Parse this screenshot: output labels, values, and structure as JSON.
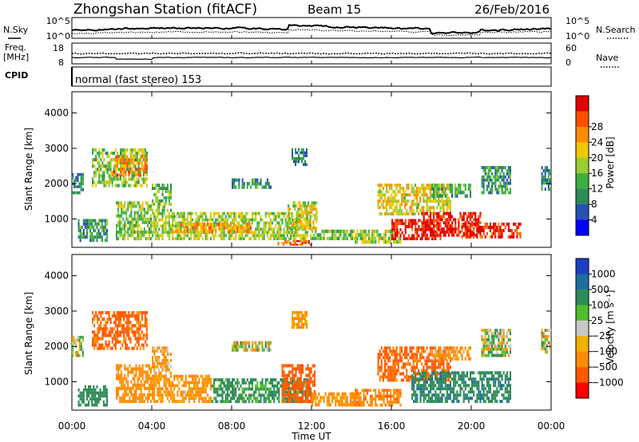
{
  "header": {
    "station": "Zhongshan Station (fitACF)",
    "beam": "Beam 15",
    "date": "26/Feb/2016"
  },
  "noise_panel": {
    "left_label": "N.Sky",
    "right_label": "N.Search",
    "left_ticks": [
      "10^5",
      "10^0"
    ],
    "right_ticks": [
      "10^5",
      "10^0"
    ]
  },
  "freq_panel": {
    "left_label_1": "Freq.",
    "left_label_2": "[MHz]",
    "right_label": "Nave",
    "left_ticks": [
      "18",
      "8"
    ],
    "right_ticks": [
      "60",
      "0"
    ]
  },
  "cpid": {
    "label": "CPID",
    "mode": "normal (fast stereo) 153"
  },
  "colors": {
    "power_scale": [
      "#0000ff",
      "#2850b4",
      "#2e8b57",
      "#3cb043",
      "#9acd32",
      "#f0c800",
      "#ff8c00",
      "#ff5000",
      "#e00000"
    ],
    "velocity_scale": [
      "#1c3fbf",
      "#1e6e9e",
      "#2e8b57",
      "#4fbe2f",
      "#c8c8c8",
      "#f0b000",
      "#ff8c00",
      "#ff5a00",
      "#ff0000"
    ]
  },
  "chart_data": [
    {
      "type": "heatmap",
      "name": "power",
      "ylabel": "Slant Range [km]",
      "xlabel": "",
      "y_ticks": [
        "1000",
        "2000",
        "3000",
        "4000"
      ],
      "y_tick_values": [
        1000,
        2000,
        3000,
        4000
      ],
      "ylim": [
        200,
        4600
      ],
      "xlim": [
        0,
        24
      ],
      "colorbar_label": "Power [dB]",
      "colorbar_ticks": [
        "4",
        "8",
        "12",
        "16",
        "20",
        "24",
        "28"
      ],
      "colorbar_tick_values": [
        4,
        8,
        12,
        16,
        20,
        24,
        28
      ],
      "colorbar_range": [
        0,
        30
      ],
      "regions": [
        {
          "t0": 0.0,
          "t1": 0.6,
          "r0": 1700,
          "r1": 2300,
          "v": 8
        },
        {
          "t0": 0.3,
          "t1": 1.8,
          "r0": 350,
          "r1": 1000,
          "v": 10
        },
        {
          "t0": 1.0,
          "t1": 3.8,
          "r0": 1900,
          "r1": 3000,
          "v": 14
        },
        {
          "t0": 2.0,
          "t1": 3.8,
          "r0": 2200,
          "r1": 2800,
          "v": 22
        },
        {
          "t0": 2.2,
          "t1": 4.0,
          "r0": 400,
          "r1": 1500,
          "v": 14
        },
        {
          "t0": 4.0,
          "t1": 5.0,
          "r0": 1200,
          "r1": 2000,
          "v": 13
        },
        {
          "t0": 4.0,
          "t1": 12.0,
          "r0": 400,
          "r1": 1200,
          "v": 15
        },
        {
          "t0": 5.0,
          "t1": 9.0,
          "r0": 600,
          "r1": 900,
          "v": 21
        },
        {
          "t0": 8.0,
          "t1": 10.0,
          "r0": 1850,
          "r1": 2150,
          "v": 9
        },
        {
          "t0": 10.8,
          "t1": 12.3,
          "r0": 700,
          "r1": 1500,
          "v": 17
        },
        {
          "t0": 10.3,
          "t1": 12.0,
          "r0": 250,
          "r1": 400,
          "v": 24
        },
        {
          "t0": 11.0,
          "t1": 11.8,
          "r0": 2500,
          "r1": 3000,
          "v": 8
        },
        {
          "t0": 12.0,
          "t1": 14.0,
          "r0": 400,
          "r1": 700,
          "v": 14
        },
        {
          "t0": 14.0,
          "t1": 16.5,
          "r0": 300,
          "r1": 700,
          "v": 16
        },
        {
          "t0": 15.3,
          "t1": 19.0,
          "r0": 1100,
          "r1": 2000,
          "v": 18
        },
        {
          "t0": 16.0,
          "t1": 18.5,
          "r0": 400,
          "r1": 1000,
          "v": 28
        },
        {
          "t0": 17.5,
          "t1": 20.5,
          "r0": 500,
          "r1": 1200,
          "v": 29
        },
        {
          "t0": 19.5,
          "t1": 22.5,
          "r0": 450,
          "r1": 900,
          "v": 27
        },
        {
          "t0": 20.5,
          "t1": 22.0,
          "r0": 1700,
          "r1": 2500,
          "v": 9
        },
        {
          "t0": 18.0,
          "t1": 20.0,
          "r0": 1600,
          "r1": 2000,
          "v": 11
        },
        {
          "t0": 23.5,
          "t1": 24.0,
          "r0": 1800,
          "r1": 2500,
          "v": 8
        }
      ]
    },
    {
      "type": "heatmap",
      "name": "velocity",
      "ylabel": "Slant Range [km]",
      "xlabel": "Time UT",
      "x_ticks": [
        "00:00",
        "04:00",
        "08:00",
        "12:00",
        "16:00",
        "20:00",
        "00:00"
      ],
      "x_tick_values": [
        0,
        4,
        8,
        12,
        16,
        20,
        24
      ],
      "y_ticks": [
        "1000",
        "2000",
        "3000",
        "4000"
      ],
      "y_tick_values": [
        1000,
        2000,
        3000,
        4000
      ],
      "ylim": [
        200,
        4600
      ],
      "xlim": [
        0,
        24
      ],
      "colorbar_label": "Velocity [m s⁻¹]",
      "colorbar_ticks": [
        "1000",
        "500",
        "100",
        "25",
        "−25",
        "−100",
        "−500",
        "−1000"
      ],
      "colorbar_tick_values": [
        1000,
        500,
        100,
        25,
        -25,
        -100,
        -500,
        -1000
      ],
      "colorbar_range": [
        -1200,
        1200
      ],
      "regions": [
        {
          "t0": 0.0,
          "t1": 0.6,
          "r0": 1700,
          "r1": 2300,
          "v": 5
        },
        {
          "t0": 0.3,
          "t1": 1.8,
          "r0": 300,
          "r1": 900,
          "v": 300
        },
        {
          "t0": 1.0,
          "t1": 3.8,
          "r0": 1900,
          "r1": 3000,
          "v": -600
        },
        {
          "t0": 2.2,
          "t1": 4.0,
          "r0": 400,
          "r1": 1500,
          "v": -300
        },
        {
          "t0": 4.0,
          "t1": 5.0,
          "r0": 1200,
          "r1": 2000,
          "v": -150
        },
        {
          "t0": 4.0,
          "t1": 7.0,
          "r0": 400,
          "r1": 1200,
          "v": -200
        },
        {
          "t0": 7.0,
          "t1": 12.0,
          "r0": 400,
          "r1": 1100,
          "v": 200
        },
        {
          "t0": 8.0,
          "t1": 10.0,
          "r0": 1850,
          "r1": 2150,
          "v": 0
        },
        {
          "t0": 10.5,
          "t1": 12.2,
          "r0": 400,
          "r1": 1500,
          "v": -700
        },
        {
          "t0": 11.0,
          "t1": 11.8,
          "r0": 2500,
          "r1": 3000,
          "v": -200
        },
        {
          "t0": 12.0,
          "t1": 14.5,
          "r0": 300,
          "r1": 700,
          "v": -250
        },
        {
          "t0": 14.0,
          "t1": 16.5,
          "r0": 300,
          "r1": 800,
          "v": -400
        },
        {
          "t0": 15.3,
          "t1": 19.0,
          "r0": 1000,
          "r1": 2000,
          "v": -600
        },
        {
          "t0": 17.0,
          "t1": 22.0,
          "r0": 400,
          "r1": 1300,
          "v": 400
        },
        {
          "t0": 18.0,
          "t1": 20.0,
          "r0": 1600,
          "r1": 2000,
          "v": -150
        },
        {
          "t0": 20.5,
          "t1": 22.0,
          "r0": 1700,
          "r1": 2500,
          "v": 0
        },
        {
          "t0": 23.5,
          "t1": 24.0,
          "r0": 1800,
          "r1": 2500,
          "v": 0
        }
      ]
    }
  ]
}
